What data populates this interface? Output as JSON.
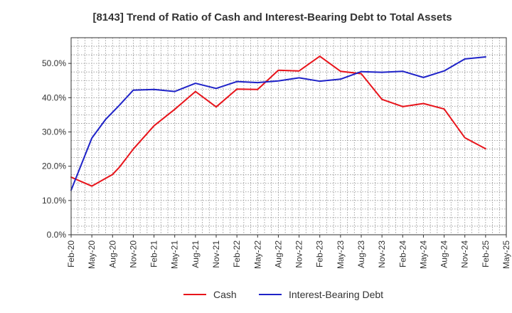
{
  "chart_data": {
    "type": "line",
    "title": "[8143]  Trend of Ratio of Cash and Interest-Bearing Debt to Total Assets",
    "xlabel": "",
    "ylabel": "",
    "categories": [
      "Feb-20",
      "May-20",
      "Aug-20",
      "Nov-20",
      "Feb-21",
      "May-21",
      "Aug-21",
      "Nov-21",
      "Feb-22",
      "May-22",
      "Aug-22",
      "Nov-22",
      "Feb-23",
      "May-23",
      "Aug-23",
      "Nov-23",
      "Feb-24",
      "May-24",
      "Aug-24",
      "Nov-24",
      "Feb-25",
      "May-25"
    ],
    "ylim": [
      0,
      0.575
    ],
    "yticks": [
      0.0,
      0.1,
      0.2,
      0.3,
      0.4,
      0.5
    ],
    "ytick_labels": [
      "0.0%",
      "10.0%",
      "20.0%",
      "30.0%",
      "40.0%",
      "50.0%"
    ],
    "grid": true,
    "legend_position": "bottom",
    "series": [
      {
        "name": "Cash",
        "color": "#e8141b",
        "points": [
          [
            0,
            0.168
          ],
          [
            1,
            0.142
          ],
          [
            2,
            0.176
          ],
          [
            2.33,
            0.197
          ],
          [
            3,
            0.25
          ],
          [
            4,
            0.318
          ],
          [
            5,
            0.366
          ],
          [
            6,
            0.418
          ],
          [
            7,
            0.373
          ],
          [
            8,
            0.425
          ],
          [
            9,
            0.424
          ],
          [
            10,
            0.48
          ],
          [
            11,
            0.478
          ],
          [
            12,
            0.521
          ],
          [
            13,
            0.477
          ],
          [
            14,
            0.47
          ],
          [
            15,
            0.395
          ],
          [
            16,
            0.374
          ],
          [
            17,
            0.383
          ],
          [
            18,
            0.367
          ],
          [
            19,
            0.283
          ],
          [
            20,
            0.251
          ]
        ]
      },
      {
        "name": "Interest-Bearing Debt",
        "color": "#1f23c8",
        "points": [
          [
            0,
            0.13
          ],
          [
            1,
            0.282
          ],
          [
            1.67,
            0.337
          ],
          [
            2.33,
            0.378
          ],
          [
            3,
            0.422
          ],
          [
            4,
            0.424
          ],
          [
            5,
            0.418
          ],
          [
            6,
            0.442
          ],
          [
            7,
            0.427
          ],
          [
            8,
            0.447
          ],
          [
            9,
            0.444
          ],
          [
            10,
            0.449
          ],
          [
            11,
            0.458
          ],
          [
            12,
            0.448
          ],
          [
            13,
            0.454
          ],
          [
            14,
            0.476
          ],
          [
            15,
            0.474
          ],
          [
            16,
            0.477
          ],
          [
            17,
            0.459
          ],
          [
            18,
            0.478
          ],
          [
            19,
            0.513
          ],
          [
            20,
            0.519
          ]
        ]
      }
    ]
  }
}
